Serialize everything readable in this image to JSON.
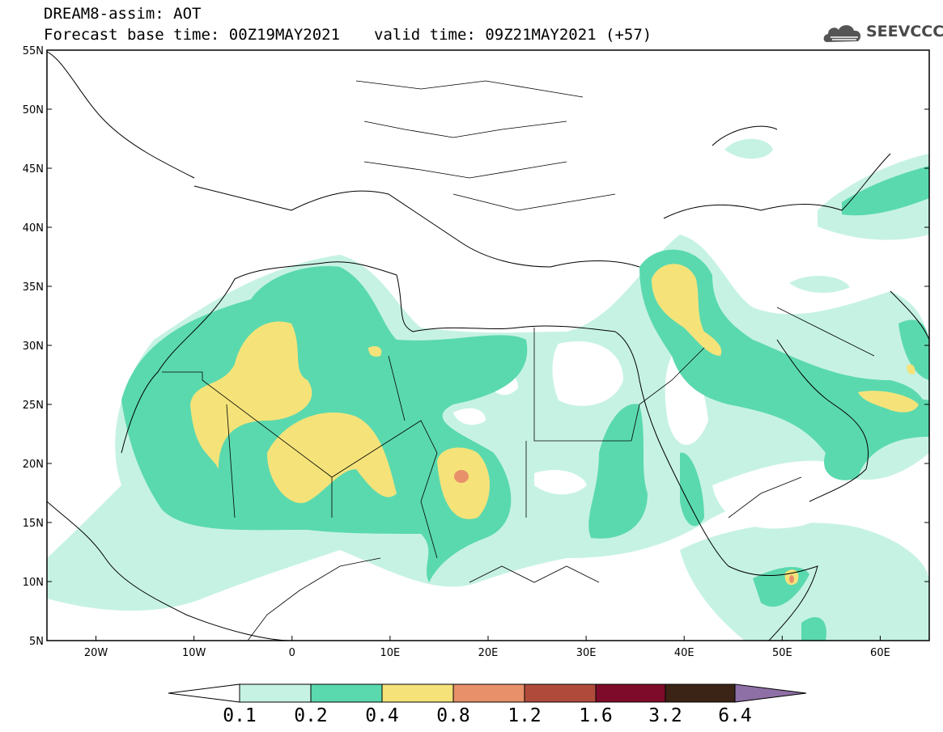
{
  "header": {
    "line1": "DREAM8-assim: AOT",
    "base_time": "Forecast base time: 00Z19MAY2021",
    "valid_time": "valid time: 09Z21MAY2021 (+57)"
  },
  "logo": {
    "text": "SEEVCCC",
    "icon": "cloud-logo-icon"
  },
  "map": {
    "lon_range": [
      -25,
      65
    ],
    "lat_range": [
      5,
      55
    ],
    "lon_ticks": [
      "20W",
      "10W",
      "0",
      "10E",
      "20E",
      "30E",
      "40E",
      "50E",
      "60E"
    ],
    "lat_ticks": [
      "55N",
      "50N",
      "45N",
      "40N",
      "35N",
      "30N",
      "25N",
      "20N",
      "15N",
      "10N",
      "5N"
    ]
  },
  "colorbar": {
    "labels": [
      "0.1",
      "0.2",
      "0.4",
      "0.8",
      "1.2",
      "1.6",
      "3.2",
      "6.4"
    ],
    "colors": [
      "#ffffff",
      "#c6f2e4",
      "#5ad9ae",
      "#f5e37a",
      "#e8906a",
      "#b04b3c",
      "#7f0b2a",
      "#3b2415",
      "#8e6fa6"
    ]
  }
}
